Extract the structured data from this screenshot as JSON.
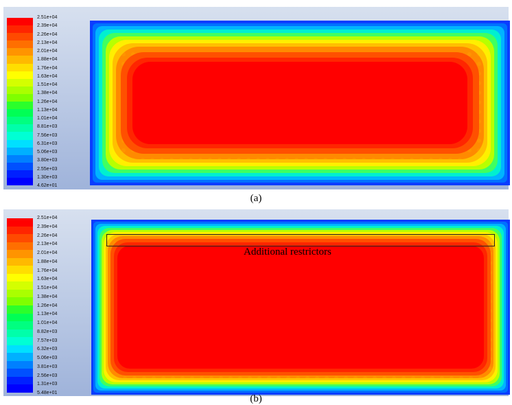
{
  "colorbar_colors": [
    "#ff0000",
    "#ff2500",
    "#ff4a00",
    "#ff6f00",
    "#ff9400",
    "#ffb900",
    "#ffde00",
    "#ffff00",
    "#d4ff00",
    "#aaff00",
    "#7fff00",
    "#2bff2b",
    "#00ff55",
    "#00ff80",
    "#00ffaa",
    "#00ffd4",
    "#00e0ff",
    "#00b0ff",
    "#0080ff",
    "#0050ff",
    "#0020ff",
    "#0000ff"
  ],
  "panel_a": {
    "legend_labels": [
      "2.51e+04",
      "2.39e+04",
      "2.26e+04",
      "2.13e+04",
      "2.01e+04",
      "1.88e+04",
      "1.76e+04",
      "1.63e+04",
      "1.51e+04",
      "1.38e+04",
      "1.26e+04",
      "1.13e+04",
      "1.01e+04",
      "8.81e+03",
      "7.56e+03",
      "6.31e+03",
      "5.06e+03",
      "3.80e+03",
      "2.55e+03",
      "1.30e+03",
      "4.62e+01"
    ],
    "caption": "(a)"
  },
  "panel_b": {
    "legend_labels": [
      "2.51e+04",
      "2.39e+04",
      "2.26e+04",
      "2.13e+04",
      "2.01e+04",
      "1.88e+04",
      "1.76e+04",
      "1.63e+04",
      "1.51e+04",
      "1.38e+04",
      "1.26e+04",
      "1.13e+04",
      "1.01e+04",
      "8.82e+03",
      "7.57e+03",
      "6.32e+03",
      "5.06e+03",
      "3.81e+03",
      "2.56e+03",
      "1.31e+03",
      "5.48e+01"
    ],
    "caption": "(b)",
    "annotation": "Additional restrictors"
  }
}
